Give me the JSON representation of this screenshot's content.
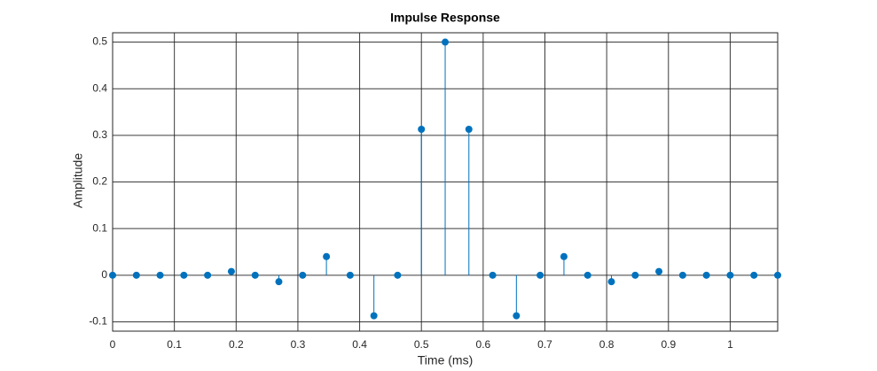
{
  "chart_data": {
    "type": "stem",
    "title": "Impulse Response",
    "x_label": "Time (ms)",
    "y_label": "Amplitude",
    "x": [
      0,
      0.0385,
      0.0769,
      0.1154,
      0.1538,
      0.1923,
      0.2308,
      0.2692,
      0.3077,
      0.3462,
      0.3846,
      0.4231,
      0.4615,
      0.5,
      0.5385,
      0.5769,
      0.6154,
      0.6538,
      0.6923,
      0.7308,
      0.7692,
      0.8077,
      0.8462,
      0.8846,
      0.9231,
      0.9615,
      1,
      1.0385,
      1.0769
    ],
    "values": [
      0,
      0,
      0,
      0,
      0,
      0.008,
      0,
      -0.014,
      0,
      0.04,
      0,
      -0.087,
      0,
      0.313,
      0.5,
      0.313,
      0,
      -0.087,
      0,
      0.04,
      0,
      -0.014,
      0,
      0.008,
      0,
      0,
      0,
      0,
      0
    ],
    "color": "#0072bd",
    "xlim": [
      0,
      1.0769
    ],
    "ylim": [
      -0.12,
      0.52
    ],
    "xticks": [
      0,
      0.1,
      0.2,
      0.3,
      0.4,
      0.5,
      0.6,
      0.7,
      0.8,
      0.9,
      1
    ],
    "yticks": [
      -0.1,
      0,
      0.1,
      0.2,
      0.3,
      0.4,
      0.5
    ],
    "grid": true
  }
}
